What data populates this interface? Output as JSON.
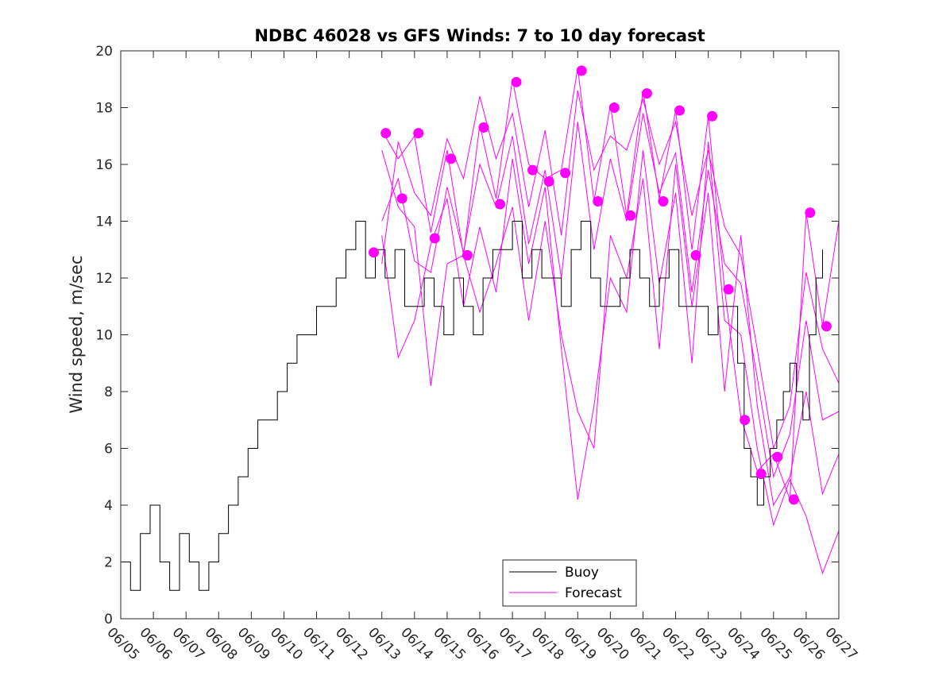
{
  "chart_data": {
    "type": "line",
    "title": "NDBC 46028 vs GFS Winds: 7 to 10 day forecast",
    "xlabel": "",
    "ylabel": "Wind speed, m/sec",
    "xlim": [
      "06/05",
      "06/27"
    ],
    "ylim": [
      0,
      20
    ],
    "yticks": [
      0,
      2,
      4,
      6,
      8,
      10,
      12,
      14,
      16,
      18,
      20
    ],
    "xtick_labels": [
      "06/05",
      "06/06",
      "06/07",
      "06/08",
      "06/09",
      "06/10",
      "06/11",
      "06/12",
      "06/13",
      "06/14",
      "06/15",
      "06/16",
      "06/17",
      "06/18",
      "06/19",
      "06/20",
      "06/21",
      "06/22",
      "06/23",
      "06/24",
      "06/25",
      "06/26",
      "06/27"
    ],
    "legend": {
      "placement": "bottom-center",
      "entries": [
        "Buoy",
        "Forecast"
      ]
    },
    "colors": {
      "buoy": "#000000",
      "forecast": "#ff00ff",
      "markers": "#ff00ff"
    },
    "series": [
      {
        "name": "Buoy",
        "x": [
          5.0,
          5.3,
          5.6,
          5.9,
          6.2,
          6.5,
          6.8,
          7.1,
          7.4,
          7.7,
          8.0,
          8.3,
          8.6,
          8.9,
          9.2,
          9.5,
          9.8,
          10.1,
          10.4,
          10.7,
          11.0,
          11.3,
          11.6,
          11.9,
          12.2,
          12.5,
          12.8,
          13.1,
          13.4,
          13.7,
          14.0,
          14.3,
          14.6,
          14.9,
          15.2,
          15.5,
          15.8,
          16.1,
          16.4,
          16.7,
          17.0,
          17.3,
          17.6,
          17.9,
          18.2,
          18.5,
          18.8,
          19.1,
          19.4,
          19.7,
          20.0,
          20.3,
          20.6,
          20.9,
          21.2,
          21.5,
          21.8,
          22.1,
          22.4,
          22.7,
          23.0,
          23.3,
          23.6,
          23.9,
          24.1,
          24.3,
          24.5,
          24.7,
          24.9,
          25.1,
          25.3,
          25.5,
          25.7,
          25.9,
          26.1,
          26.3,
          26.5
        ],
        "y": [
          2,
          1,
          3,
          4,
          2,
          1,
          3,
          2,
          1,
          2,
          3,
          4,
          5,
          6,
          7,
          7,
          8,
          9,
          10,
          10,
          11,
          11,
          12,
          13,
          14,
          12,
          13,
          12,
          13,
          11,
          11,
          12,
          11,
          10,
          12,
          11,
          10,
          12,
          13,
          13,
          14,
          12,
          13,
          12,
          12,
          11,
          13,
          14,
          12,
          11,
          11,
          12,
          13,
          12,
          11,
          12,
          13,
          11,
          11,
          11,
          10,
          11,
          11,
          9,
          6,
          5,
          4,
          5,
          6,
          7,
          8,
          9,
          8,
          7,
          10,
          12,
          13
        ]
      }
    ],
    "forecast_series": [
      {
        "x": [
          13.0,
          13.5,
          14.0,
          14.5,
          15.0,
          15.5,
          16.0,
          16.5,
          17.0,
          17.5,
          18.0,
          18.5,
          19.0,
          19.5,
          20.0,
          20.5,
          21.0,
          21.5,
          22.0,
          22.5,
          23.0,
          23.5,
          24.0,
          24.5,
          25.0,
          25.5,
          26.0,
          26.5,
          27.0
        ],
        "y": [
          17.2,
          16.2,
          17.0,
          13.6,
          16.5,
          12.8,
          17.4,
          14.8,
          19.0,
          16.0,
          15.5,
          15.8,
          19.4,
          14.7,
          18.1,
          14.2,
          18.6,
          14.8,
          17.9,
          13.0,
          17.7,
          11.6,
          7.1,
          5.2,
          5.8,
          4.2,
          14.3,
          10.3,
          14.0
        ]
      },
      {
        "x": [
          13.0,
          13.5,
          14.0,
          14.5,
          15.0,
          15.5,
          16.0,
          16.5,
          17.0,
          17.5,
          18.0,
          18.5,
          19.0,
          19.5,
          20.0,
          20.5,
          21.0,
          21.5,
          22.0,
          22.5,
          23.0,
          23.5,
          24.0,
          24.5,
          25.0,
          25.5,
          26.0,
          26.5,
          27.0
        ],
        "y": [
          12.5,
          16.8,
          15.0,
          14.2,
          16.9,
          15.5,
          18.4,
          16.2,
          17.8,
          14.5,
          17.2,
          13.5,
          18.6,
          15.8,
          17.0,
          16.5,
          18.3,
          16.0,
          17.5,
          14.2,
          16.5,
          13.8,
          12.8,
          9.5,
          6.0,
          7.5,
          12.2,
          9.5,
          8.3
        ]
      },
      {
        "x": [
          13.0,
          13.5,
          14.0,
          14.5,
          15.0,
          15.5,
          16.0,
          16.5,
          17.0,
          17.5,
          18.0,
          18.5,
          19.0,
          19.5,
          20.0,
          20.5,
          21.0,
          21.5,
          22.0,
          22.5,
          23.0,
          23.5,
          24.0,
          24.5,
          25.0,
          25.5,
          26.0,
          26.5,
          27.0
        ],
        "y": [
          14.0,
          15.5,
          12.6,
          12.2,
          15.2,
          12.9,
          16.0,
          14.5,
          17.0,
          13.2,
          15.8,
          12.0,
          17.5,
          13.0,
          16.2,
          14.0,
          17.8,
          15.0,
          16.4,
          11.5,
          15.8,
          12.5,
          11.8,
          8.5,
          5.0,
          6.5,
          10.5,
          7.0,
          7.3
        ]
      },
      {
        "x": [
          13.0,
          13.5,
          14.0,
          14.5,
          15.0,
          15.5,
          16.0,
          16.5,
          17.0,
          17.5,
          18.0,
          18.5,
          19.0,
          19.5,
          20.0,
          20.5,
          21.0,
          21.5,
          22.0,
          22.5,
          23.0,
          23.5,
          24.0,
          24.5,
          25.0,
          25.5,
          26.0,
          26.5,
          27.0
        ],
        "y": [
          16.5,
          14.5,
          13.8,
          8.2,
          12.5,
          12.8,
          10.8,
          12.5,
          14.5,
          10.5,
          14.0,
          10.0,
          7.3,
          6.0,
          13.5,
          12.0,
          15.5,
          9.5,
          16.0,
          11.0,
          15.0,
          8.0,
          13.5,
          7.5,
          4.0,
          5.0,
          8.0,
          4.4,
          5.8
        ]
      },
      {
        "x": [
          13.0,
          13.5,
          14.0,
          14.5,
          15.0,
          15.5,
          16.0,
          16.5,
          17.0,
          17.5,
          18.0,
          18.5,
          19.0,
          19.5,
          20.0,
          20.5,
          21.0,
          21.5,
          22.0,
          22.5,
          23.0,
          23.5,
          24.0,
          24.5,
          25.0,
          25.5,
          26.0,
          26.5,
          27.0
        ],
        "y": [
          13.5,
          9.2,
          10.5,
          13.2,
          14.8,
          11.0,
          13.8,
          11.5,
          16.2,
          12.5,
          15.2,
          9.5,
          4.2,
          7.5,
          12.0,
          10.8,
          16.5,
          11.8,
          15.0,
          9.0,
          16.8,
          10.5,
          10.0,
          6.0,
          3.3,
          4.9,
          3.6,
          1.6,
          3.1
        ]
      }
    ],
    "forecast_points": {
      "x": [
        12.75,
        13.12,
        13.62,
        14.12,
        14.62,
        15.12,
        15.62,
        16.12,
        16.62,
        17.12,
        17.62,
        18.12,
        18.62,
        19.12,
        19.62,
        20.12,
        20.62,
        21.12,
        21.62,
        22.12,
        22.62,
        23.12,
        23.62,
        24.12,
        24.62,
        25.12,
        25.62,
        26.12,
        26.62
      ],
      "y": [
        12.9,
        17.1,
        14.8,
        17.1,
        13.4,
        16.2,
        12.8,
        17.3,
        14.6,
        18.9,
        15.8,
        15.4,
        15.7,
        19.3,
        14.7,
        18.0,
        14.2,
        18.5,
        14.7,
        17.9,
        12.8,
        17.7,
        11.6,
        7.0,
        5.1,
        5.7,
        4.2,
        14.3,
        10.3
      ]
    }
  }
}
